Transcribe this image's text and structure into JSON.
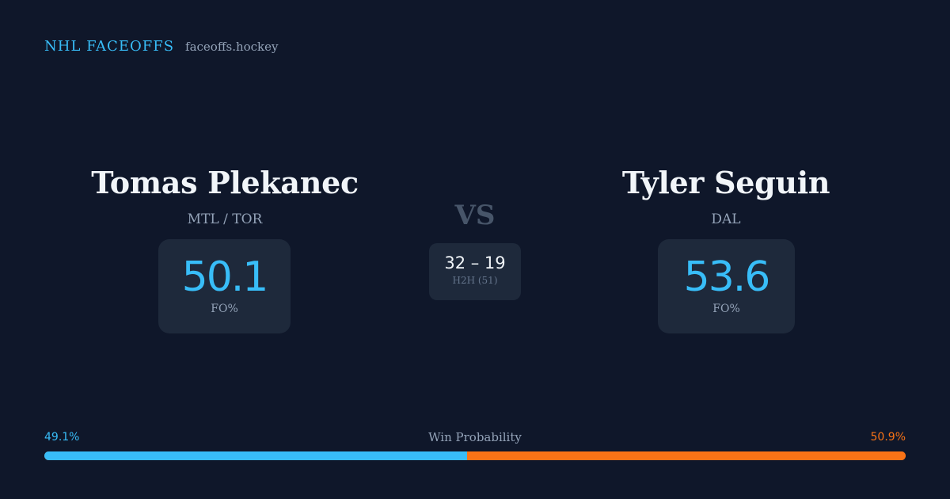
{
  "brand": {
    "name": "NHL FACEOFFS",
    "domain": "faceoffs.hockey"
  },
  "player_left": {
    "name": "Tomas Plekanec",
    "team": "MTL / TOR",
    "stat_value": "50.1",
    "stat_label": "FO%"
  },
  "vs_label": "VS",
  "head_to_head": {
    "score": "32 – 19",
    "label": "H2H (51)"
  },
  "player_right": {
    "name": "Tyler Seguin",
    "team": "DAL",
    "stat_value": "53.6",
    "stat_label": "FO%"
  },
  "win_probability": {
    "title": "Win Probability",
    "left_label": "49.1%",
    "right_label": "50.9%",
    "left_fraction": 0.491,
    "right_fraction": 0.509,
    "left_color": "#38bdf8",
    "right_color": "#f97316"
  }
}
